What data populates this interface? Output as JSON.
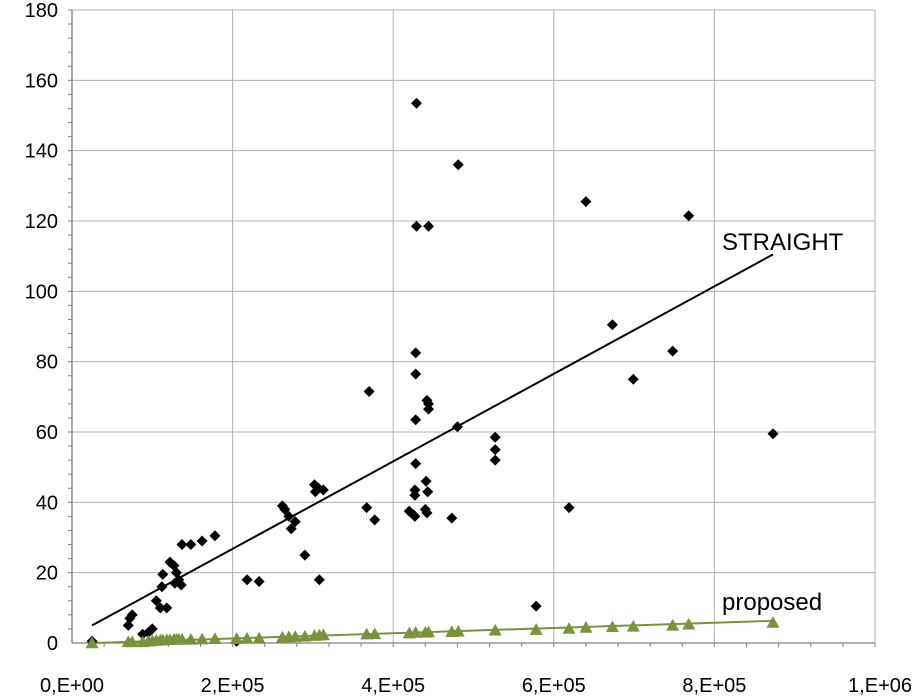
{
  "chart_data": {
    "type": "scatter",
    "x_ticks": [
      "0,E+00",
      "2,E+05",
      "4,E+05",
      "6,E+05",
      "8,E+05",
      "1,E+06"
    ],
    "y_ticks": [
      "0",
      "20",
      "40",
      "60",
      "80",
      "100",
      "120",
      "140",
      "160",
      "180"
    ],
    "xlim": [
      0,
      1000000
    ],
    "ylim": [
      0,
      180
    ],
    "grid": true,
    "legend": "none",
    "annotations": {
      "straight": "STRAIGHT",
      "proposed": "proposed"
    },
    "colors": {
      "straight": "#000000",
      "proposed": "#77933c",
      "grid": "#b0b0b0",
      "axis": "#808080"
    },
    "series": [
      {
        "marker": "diamond",
        "points": [
          [
            25000,
            0.5
          ],
          [
            70000,
            5
          ],
          [
            72000,
            7
          ],
          [
            75000,
            8
          ],
          [
            88000,
            2.5
          ],
          [
            95000,
            3
          ],
          [
            100000,
            4
          ],
          [
            105000,
            12
          ],
          [
            110000,
            10
          ],
          [
            112000,
            16
          ],
          [
            113000,
            19.5
          ],
          [
            118000,
            10
          ],
          [
            122000,
            23
          ],
          [
            127000,
            22
          ],
          [
            128000,
            17
          ],
          [
            130000,
            20
          ],
          [
            133000,
            18
          ],
          [
            136000,
            16.5
          ],
          [
            137000,
            28
          ],
          [
            148000,
            28
          ],
          [
            162000,
            29
          ],
          [
            178000,
            30.5
          ],
          [
            205000,
            0.5
          ],
          [
            218000,
            18
          ],
          [
            233000,
            17.5
          ],
          [
            262000,
            39
          ],
          [
            265000,
            38
          ],
          [
            270000,
            36
          ],
          [
            273000,
            32.5
          ],
          [
            278000,
            34.5
          ],
          [
            290000,
            25
          ],
          [
            302000,
            45
          ],
          [
            303000,
            43
          ],
          [
            307000,
            44
          ],
          [
            308000,
            18
          ],
          [
            313000,
            43.5
          ],
          [
            367000,
            38.5
          ],
          [
            370000,
            71.5
          ],
          [
            377000,
            35
          ],
          [
            420000,
            37.5
          ],
          [
            425000,
            36.5
          ],
          [
            427000,
            42
          ],
          [
            427000,
            43.5
          ],
          [
            427000,
            36
          ],
          [
            428000,
            51
          ],
          [
            428000,
            63.5
          ],
          [
            428000,
            76.5
          ],
          [
            428000,
            82.5
          ],
          [
            429000,
            118.5
          ],
          [
            429000,
            153.5
          ],
          [
            440000,
            38
          ],
          [
            441000,
            46
          ],
          [
            442000,
            37
          ],
          [
            442000,
            69
          ],
          [
            443000,
            43
          ],
          [
            444000,
            68
          ],
          [
            444000,
            66.5
          ],
          [
            444000,
            118.5
          ],
          [
            473000,
            35.5
          ],
          [
            480000,
            61.5
          ],
          [
            481000,
            136
          ],
          [
            527000,
            58.5
          ],
          [
            527000,
            55
          ],
          [
            527000,
            52
          ],
          [
            578000,
            10.5
          ],
          [
            619000,
            38.5
          ],
          [
            640000,
            125.5
          ],
          [
            673000,
            90.5
          ],
          [
            699000,
            75
          ],
          [
            748000,
            83
          ],
          [
            768000,
            121.5
          ],
          [
            873000,
            59.5
          ]
        ],
        "trend": {
          "x": [
            25000,
            873000
          ],
          "y": [
            5,
            110.5
          ]
        }
      },
      {
        "marker": "triangle",
        "points": [
          [
            25000,
            0
          ],
          [
            70000,
            0.3
          ],
          [
            75000,
            0.3
          ],
          [
            88000,
            0.3
          ],
          [
            95000,
            0.5
          ],
          [
            100000,
            0.6
          ],
          [
            105000,
            0.7
          ],
          [
            110000,
            0.8
          ],
          [
            113000,
            0.8
          ],
          [
            118000,
            0.9
          ],
          [
            122000,
            0.9
          ],
          [
            127000,
            1
          ],
          [
            130000,
            1
          ],
          [
            133000,
            1
          ],
          [
            137000,
            1
          ],
          [
            148000,
            1
          ],
          [
            162000,
            1.1
          ],
          [
            178000,
            1.2
          ],
          [
            205000,
            1.2
          ],
          [
            218000,
            1.3
          ],
          [
            233000,
            1.3
          ],
          [
            262000,
            1.6
          ],
          [
            270000,
            1.7
          ],
          [
            278000,
            1.8
          ],
          [
            290000,
            1.9
          ],
          [
            302000,
            2.1
          ],
          [
            308000,
            2.2
          ],
          [
            313000,
            2.3
          ],
          [
            367000,
            2.5
          ],
          [
            377000,
            2.6
          ],
          [
            420000,
            2.8
          ],
          [
            428000,
            3
          ],
          [
            440000,
            3
          ],
          [
            444000,
            3.1
          ],
          [
            473000,
            3.2
          ],
          [
            481000,
            3.3
          ],
          [
            527000,
            3.6
          ],
          [
            578000,
            3.8
          ],
          [
            619000,
            4.1
          ],
          [
            640000,
            4.4
          ],
          [
            673000,
            4.6
          ],
          [
            699000,
            4.7
          ],
          [
            748000,
            5
          ],
          [
            768000,
            5.3
          ],
          [
            873000,
            5.8
          ]
        ],
        "trend": {
          "x": [
            25000,
            873000
          ],
          "y": [
            0,
            6.3
          ]
        }
      }
    ]
  }
}
